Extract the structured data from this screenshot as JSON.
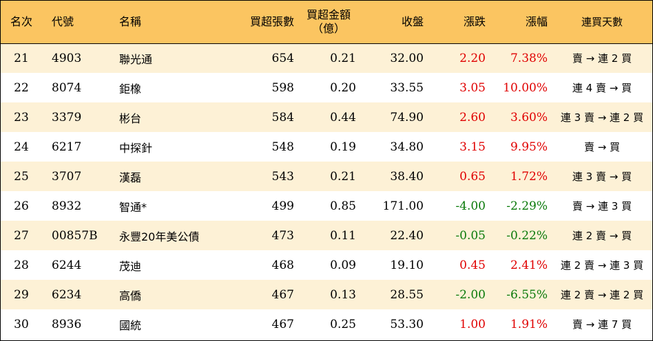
{
  "headers": {
    "rank": "名次",
    "code": "代號",
    "name": "名稱",
    "lots": "買超張數",
    "amount_line1": "買超金額",
    "amount_line2": "（億）",
    "close": "收盤",
    "change": "漲跌",
    "pct": "漲幅",
    "days": "連買天數"
  },
  "colors": {
    "header_bg": "#fbc561",
    "stripe_bg": "#fdf1d6",
    "up": "#e00000",
    "down": "#0a7a0a"
  },
  "rows": [
    {
      "rank": "21",
      "code": "4903",
      "name": "聯光通",
      "lots": "654",
      "amount": "0.21",
      "close": "32.00",
      "change": "2.20",
      "pct": "7.38%",
      "days": "賣 → 連 2 買",
      "dir": "up"
    },
    {
      "rank": "22",
      "code": "8074",
      "name": "鉅橡",
      "lots": "598",
      "amount": "0.20",
      "close": "33.55",
      "change": "3.05",
      "pct": "10.00%",
      "days": "連 4 賣 → 買",
      "dir": "up"
    },
    {
      "rank": "23",
      "code": "3379",
      "name": "彬台",
      "lots": "584",
      "amount": "0.44",
      "close": "74.90",
      "change": "2.60",
      "pct": "3.60%",
      "days": "連 3 賣 → 連 2 買",
      "dir": "up"
    },
    {
      "rank": "24",
      "code": "6217",
      "name": "中探針",
      "lots": "548",
      "amount": "0.19",
      "close": "34.80",
      "change": "3.15",
      "pct": "9.95%",
      "days": "賣 → 買",
      "dir": "up"
    },
    {
      "rank": "25",
      "code": "3707",
      "name": "漢磊",
      "lots": "543",
      "amount": "0.21",
      "close": "38.40",
      "change": "0.65",
      "pct": "1.72%",
      "days": "連 3 賣 → 買",
      "dir": "up"
    },
    {
      "rank": "26",
      "code": "8932",
      "name": "智通*",
      "lots": "499",
      "amount": "0.85",
      "close": "171.00",
      "change": "-4.00",
      "pct": "-2.29%",
      "days": "賣 → 連 3 買",
      "dir": "down"
    },
    {
      "rank": "27",
      "code": "00857B",
      "name": "永豐20年美公債",
      "lots": "473",
      "amount": "0.11",
      "close": "22.40",
      "change": "-0.05",
      "pct": "-0.22%",
      "days": "連 2 賣 → 買",
      "dir": "down"
    },
    {
      "rank": "28",
      "code": "6244",
      "name": "茂迪",
      "lots": "468",
      "amount": "0.09",
      "close": "19.10",
      "change": "0.45",
      "pct": "2.41%",
      "days": "連 2 賣 → 連 3 買",
      "dir": "up"
    },
    {
      "rank": "29",
      "code": "6234",
      "name": "高僑",
      "lots": "467",
      "amount": "0.13",
      "close": "28.55",
      "change": "-2.00",
      "pct": "-6.55%",
      "days": "連 2 賣 → 連 2 買",
      "dir": "down"
    },
    {
      "rank": "30",
      "code": "8936",
      "name": "國統",
      "lots": "467",
      "amount": "0.25",
      "close": "53.30",
      "change": "1.00",
      "pct": "1.91%",
      "days": "賣 → 連 7 買",
      "dir": "up"
    }
  ]
}
